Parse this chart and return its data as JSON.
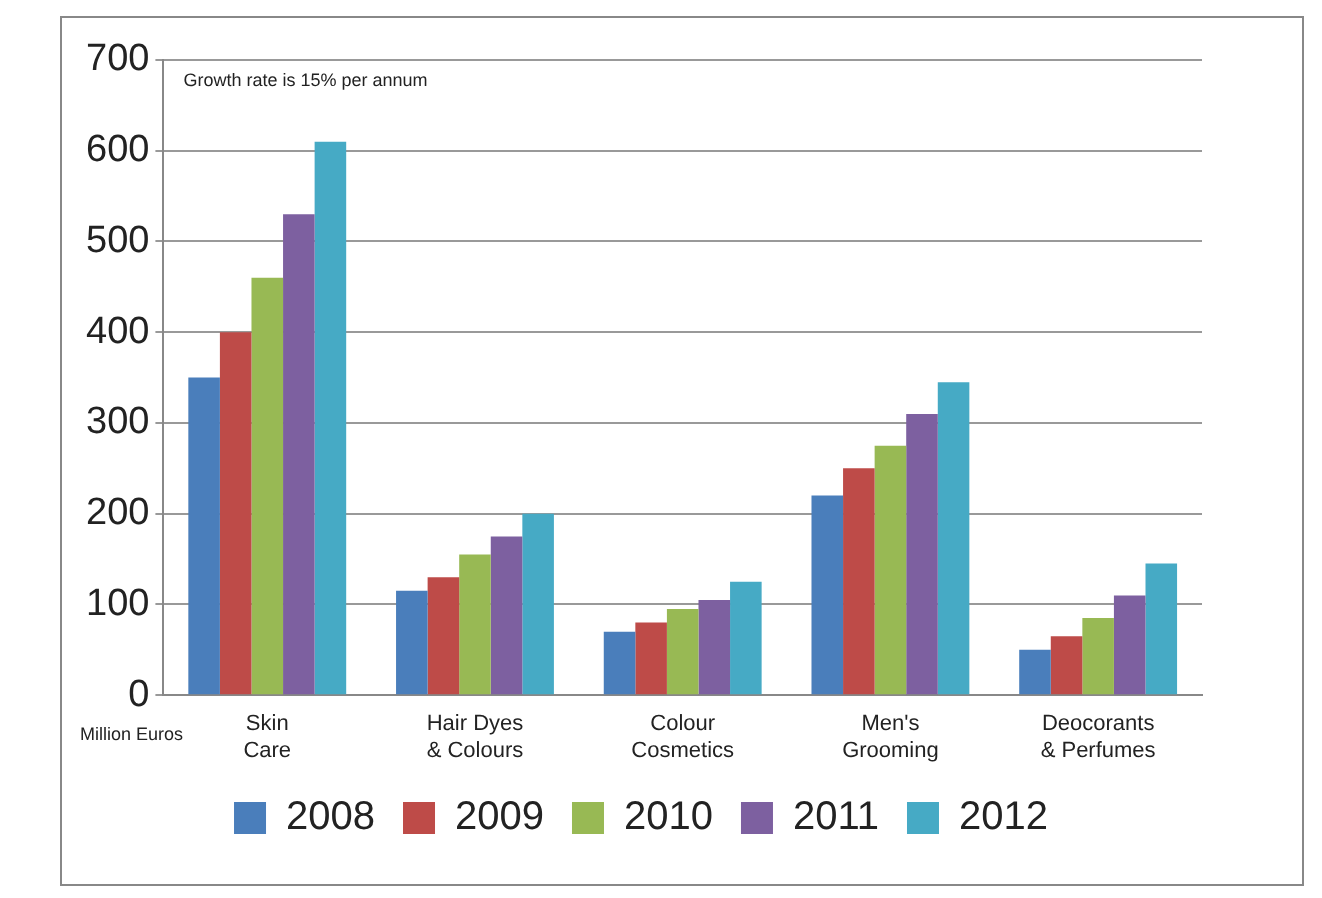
{
  "chart_data": {
    "type": "bar",
    "ylabel": "Million Euros",
    "annotations": [
      "Growth rate is 15% per annum"
    ],
    "categories": [
      "Skin Care",
      "Hair Dyes & Colours",
      "Colour Cosmetics",
      "Men's Grooming",
      "Deocorants & Perfumes"
    ],
    "series": [
      {
        "name": "2008",
        "color": "#4a7ebb",
        "values": [
          350,
          115,
          70,
          220,
          50
        ]
      },
      {
        "name": "2009",
        "color": "#be4b48",
        "values": [
          400,
          130,
          80,
          250,
          65
        ]
      },
      {
        "name": "2010",
        "color": "#98b954",
        "values": [
          460,
          155,
          95,
          275,
          85
        ]
      },
      {
        "name": "2011",
        "color": "#7d60a0",
        "values": [
          530,
          175,
          105,
          310,
          110
        ]
      },
      {
        "name": "2012",
        "color": "#46aac5",
        "values": [
          610,
          200,
          125,
          345,
          145
        ]
      }
    ],
    "ylim": [
      0,
      700
    ],
    "yticks": [
      0,
      100,
      200,
      300,
      400,
      500,
      600,
      700
    ],
    "grid": "y",
    "legend": "bottom"
  }
}
